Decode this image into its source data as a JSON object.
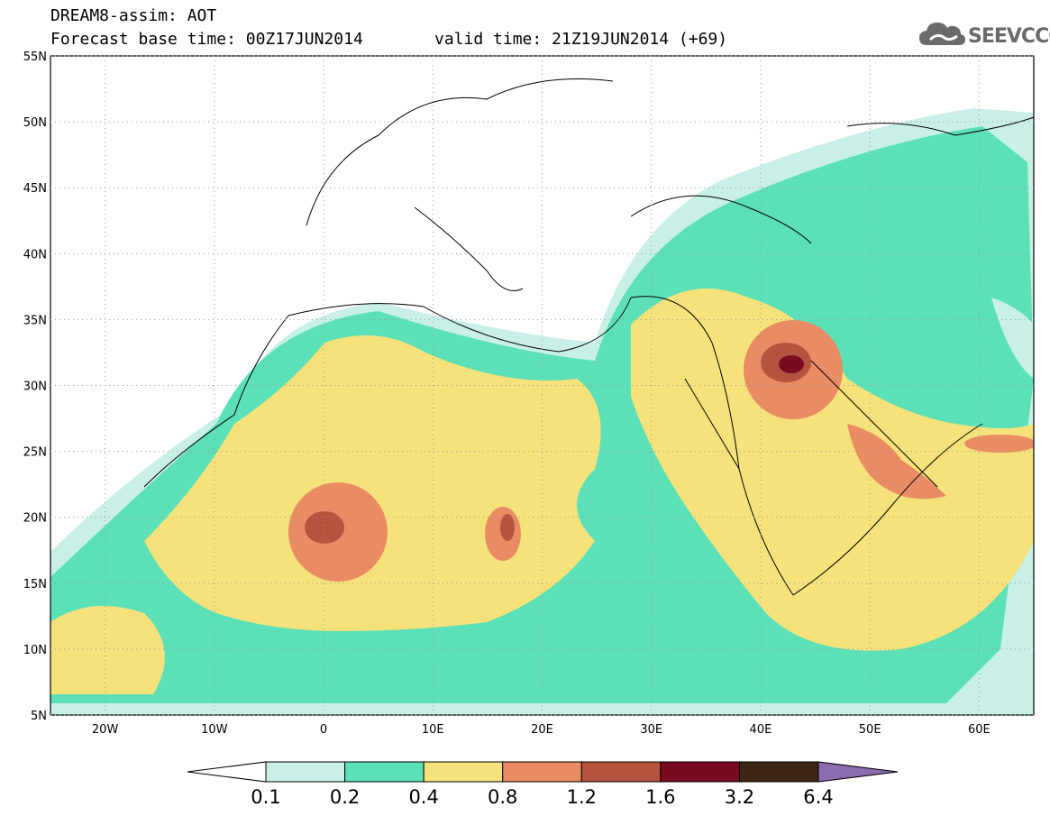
{
  "header": {
    "line1": "DREAM8-assim: AOT",
    "line2": "Forecast base time: 00Z17JUN2014",
    "valid": "valid time: 21Z19JUN2014 (+69)",
    "logo": "SEEVCCC"
  },
  "map": {
    "lat_labels": [
      "55N",
      "50N",
      "45N",
      "40N",
      "35N",
      "30N",
      "25N",
      "20N",
      "15N",
      "10N",
      "5N"
    ],
    "lon_labels": [
      "20W",
      "10W",
      "0",
      "10E",
      "20E",
      "30E",
      "40E",
      "50E",
      "60E"
    ],
    "lat_range": [
      5,
      55
    ],
    "lon_range": [
      -25,
      65
    ]
  },
  "colorbar": {
    "labels": [
      "0.1",
      "0.2",
      "0.4",
      "0.8",
      "1.2",
      "1.6",
      "3.2",
      "6.4"
    ],
    "colors": [
      "#ffffff",
      "#c8f0e8",
      "#5ce0b8",
      "#f6e27a",
      "#e98c64",
      "#b5533e",
      "#7a0a20",
      "#3d2514",
      "#8c6cb0"
    ]
  }
}
